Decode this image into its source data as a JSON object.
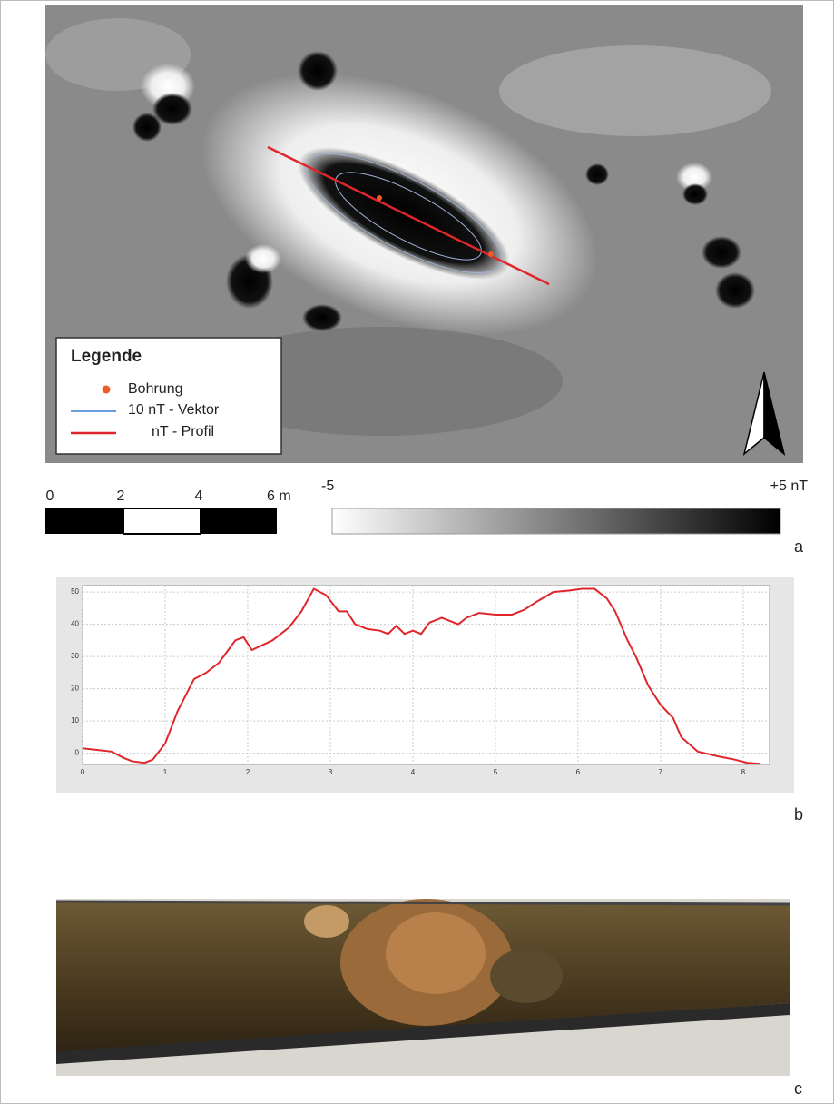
{
  "legend": {
    "title": "Legende",
    "items": [
      "Bohrung",
      "10 nT - Vektor",
      "nT - Profil"
    ]
  },
  "scale_bar": {
    "labels": [
      "0",
      "2",
      "4",
      "6 m"
    ]
  },
  "color_scale": {
    "min": "-5",
    "max": "+5 nT"
  },
  "panel_labels": [
    "a",
    "b",
    "c"
  ],
  "chart_data": {
    "type": "line",
    "x": [
      0,
      0.35,
      0.5,
      0.6,
      0.75,
      0.85,
      1.0,
      1.15,
      1.35,
      1.5,
      1.65,
      1.85,
      1.95,
      2.05,
      2.3,
      2.5,
      2.65,
      2.8,
      2.95,
      3.1,
      3.2,
      3.3,
      3.45,
      3.6,
      3.7,
      3.8,
      3.9,
      4.0,
      4.1,
      4.2,
      4.35,
      4.55,
      4.65,
      4.8,
      5.0,
      5.2,
      5.35,
      5.5,
      5.7,
      5.9,
      6.05,
      6.2,
      6.35,
      6.45,
      6.6,
      6.7,
      6.85,
      7.0,
      7.15,
      7.25,
      7.45,
      7.7,
      7.9,
      8.05,
      8.2
    ],
    "values": [
      1.5,
      0.5,
      -1.5,
      -2.5,
      -3,
      -2,
      3,
      13,
      23,
      25,
      28,
      35,
      36,
      32,
      35,
      39,
      44,
      51,
      49,
      44,
      44,
      40,
      38.5,
      38,
      37,
      39.5,
      37,
      38,
      37,
      40.5,
      42,
      40,
      42,
      43.5,
      43,
      43,
      44.5,
      47,
      50,
      50.5,
      51,
      51,
      48,
      44,
      35,
      30,
      21,
      15,
      11,
      5,
      0.5,
      -1,
      -2,
      -3,
      -3.3
    ],
    "color": "#e0262b",
    "xlim": [
      0,
      8.32
    ],
    "ylim": [
      -3.5,
      52
    ],
    "xticks": [
      0,
      1,
      2,
      3,
      4,
      5,
      6,
      7,
      8
    ],
    "yticks": [
      0,
      10,
      20,
      30,
      40,
      50
    ],
    "grid": true
  }
}
